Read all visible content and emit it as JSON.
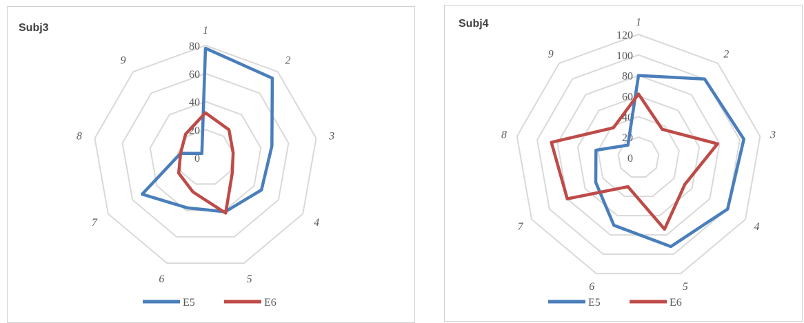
{
  "chart_data": [
    {
      "type": "radar",
      "title": "Subj3",
      "categories": [
        "1",
        "2",
        "3",
        "4",
        "5",
        "6",
        "7",
        "8",
        "9"
      ],
      "rlim": [
        0,
        80
      ],
      "ticks": [
        "0",
        "20",
        "40",
        "60",
        "80"
      ],
      "grid": true,
      "legend": "bottom",
      "series": [
        {
          "name": "E5",
          "color": "#4a7ebb",
          "values": [
            78,
            74,
            48,
            46,
            41,
            38,
            52,
            18,
            4
          ]
        },
        {
          "name": "E6",
          "color": "#be4b48",
          "values": [
            32,
            26,
            20,
            22,
            42,
            26,
            22,
            18,
            22
          ]
        }
      ]
    },
    {
      "type": "radar",
      "title": "Subj4",
      "categories": [
        "1",
        "2",
        "3",
        "4",
        "5",
        "6",
        "7",
        "8",
        "9"
      ],
      "rlim": [
        0,
        120
      ],
      "ticks": [
        "0",
        "20",
        "40",
        "60",
        "80",
        "100",
        "120"
      ],
      "grid": true,
      "legend": "bottom",
      "series": [
        {
          "name": "E5",
          "color": "#4a7ebb",
          "values": [
            80,
            100,
            104,
            100,
            92,
            70,
            48,
            42,
            16
          ]
        },
        {
          "name": "E6",
          "color": "#be4b48",
          "values": [
            62,
            36,
            78,
            52,
            74,
            30,
            80,
            86,
            38
          ]
        }
      ]
    }
  ]
}
